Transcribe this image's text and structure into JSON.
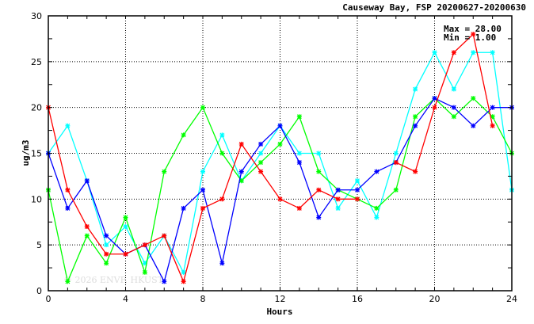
{
  "chart_data": {
    "type": "line",
    "title": "Causeway Bay, FSP 20200627-20200630",
    "xlabel": "Hours",
    "ylabel": "ug/m3",
    "xlim": [
      0,
      24
    ],
    "ylim": [
      0,
      30
    ],
    "xticks": [
      0,
      4,
      8,
      12,
      16,
      20,
      24
    ],
    "yticks": [
      0,
      5,
      10,
      15,
      20,
      25,
      30
    ],
    "grid": true,
    "annotations": {
      "max": "Max = 28.00",
      "min": "Min =  1.00"
    },
    "watermark": "© 2026 ENVF, HKUST",
    "x": [
      0,
      1,
      2,
      3,
      4,
      5,
      6,
      7,
      8,
      9,
      10,
      11,
      12,
      13,
      14,
      15,
      16,
      17,
      18,
      19,
      20,
      21,
      22,
      23,
      24
    ],
    "series": [
      {
        "name": "cyan",
        "color": "#00ffff",
        "values": [
          15,
          18,
          12,
          5,
          7,
          3,
          6,
          2,
          13,
          17,
          12,
          15,
          18,
          15,
          15,
          9,
          12,
          8,
          15,
          22,
          26,
          22,
          26,
          26,
          11
        ]
      },
      {
        "name": "green",
        "color": "#00ff00",
        "values": [
          11,
          1,
          6,
          3,
          8,
          2,
          13,
          17,
          20,
          15,
          12,
          14,
          16,
          19,
          13,
          11,
          10,
          9,
          11,
          19,
          21,
          19,
          21,
          19,
          15
        ]
      },
      {
        "name": "blue",
        "color": "#0000ff",
        "values": [
          15,
          9,
          12,
          6,
          4,
          5,
          1,
          9,
          11,
          3,
          13,
          16,
          18,
          14,
          8,
          11,
          11,
          13,
          14,
          18,
          21,
          20,
          18,
          20,
          20
        ]
      },
      {
        "name": "red",
        "color": "#ff0000",
        "values": [
          20,
          11,
          7,
          4,
          4,
          5,
          6,
          1,
          9,
          10,
          16,
          13,
          10,
          9,
          11,
          10,
          10,
          null,
          14,
          13,
          20,
          26,
          28,
          18,
          null
        ]
      }
    ]
  }
}
